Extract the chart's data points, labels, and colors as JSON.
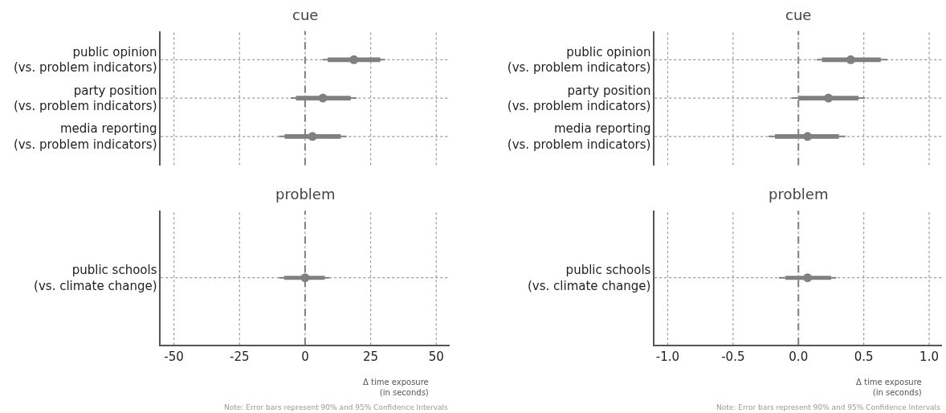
{
  "chart_data": [
    {
      "type": "scatter",
      "orientation": "horizontal",
      "title": "cue",
      "categories": [
        "public opinion\n(vs. problem indicators)",
        "party position\n(vs. problem indicators)",
        "media reporting\n(vs. problem indicators)"
      ],
      "xlim": [
        -55,
        55
      ],
      "grid": true,
      "tick_labels": "y",
      "ref_lines": [
        {
          "axis": "x",
          "value": 0,
          "color": "#808080",
          "line_style": "dashed"
        }
      ],
      "series": [
        {
          "color": "#808080",
          "marker": "circle",
          "values": [
            18.6,
            6.8,
            2.8
          ],
          "errors": [
            [
              6.7,
              30.5
            ],
            [
              -5.5,
              19.6
            ],
            [
              -10,
              15.8
            ]
          ]
        },
        {
          "type": "bar",
          "color": "#808080",
          "base": [
            8.6,
            -3.5,
            -7.8
          ],
          "values": [
            20.1,
            20.9,
            21.4
          ]
        }
      ]
    },
    {
      "type": "scatter",
      "orientation": "horizontal",
      "title": "cue",
      "categories": [
        "public opinion\n(vs. problem indicators)",
        "party position\n(vs. problem indicators)",
        "media reporting\n(vs. problem indicators)"
      ],
      "xlim": [
        -1.1,
        1.1
      ],
      "grid": true,
      "tick_labels": "y",
      "ref_lines": [
        {
          "axis": "x",
          "value": 0,
          "color": "#808080",
          "line_style": "dashed"
        }
      ],
      "series": [
        {
          "color": "#808080",
          "marker": "circle",
          "values": [
            0.4,
            0.23,
            0.07
          ],
          "errors": [
            [
              0.14,
              0.68
            ],
            [
              -0.05,
              0.51
            ],
            [
              -0.23,
              0.36
            ]
          ]
        },
        {
          "type": "bar",
          "color": "#808080",
          "base": [
            0.18,
            0.0,
            -0.18
          ],
          "values": [
            0.45,
            0.46,
            0.49
          ]
        }
      ]
    },
    {
      "type": "scatter",
      "orientation": "horizontal",
      "title": "problem",
      "categories": [
        "public schools\n(vs. climate change)"
      ],
      "xlim": [
        -55,
        55
      ],
      "xticks": [
        -50,
        -25,
        0,
        25,
        50
      ],
      "xlabel": "Δ time exposure\n(in seconds)",
      "grid": true,
      "ref_lines": [
        {
          "axis": "x",
          "value": 0,
          "color": "#808080",
          "line_style": "dashed"
        }
      ],
      "annotations": [
        "Note: Error bars represent 90% and 95% Confidence Intervals"
      ],
      "series": [
        {
          "color": "#808080",
          "marker": "circle",
          "values": [
            0
          ],
          "errors": [
            [
              -10,
              9.3
            ]
          ]
        },
        {
          "type": "bar",
          "color": "#808080",
          "base": [
            -8
          ],
          "values": [
            15.5
          ]
        }
      ]
    },
    {
      "type": "scatter",
      "orientation": "horizontal",
      "title": "problem",
      "categories": [
        "public schools\n(vs. climate change)"
      ],
      "xlim": [
        -1.1,
        1.1
      ],
      "xticks": [
        {
          "value": -1,
          "label": "-1.0"
        },
        {
          "value": -0.5,
          "label": "-0.5"
        },
        {
          "value": 0,
          "label": "0.0"
        },
        {
          "value": 0.5,
          "label": "0.5"
        },
        {
          "value": 1,
          "label": "1.0"
        }
      ],
      "xlabel": "Δ time exposure\n(in seconds)",
      "grid": true,
      "ref_lines": [
        {
          "axis": "x",
          "value": 0,
          "color": "#808080",
          "line_style": "dashed"
        }
      ],
      "annotations": [
        "Note: Error bars represent 90% and 95% Confidence Intervals"
      ],
      "series": [
        {
          "color": "#808080",
          "marker": "circle",
          "values": [
            0.07
          ],
          "errors": [
            [
              -0.15,
              0.29
            ]
          ]
        },
        {
          "type": "bar",
          "color": "#808080",
          "base": [
            -0.1
          ],
          "values": [
            0.35
          ]
        }
      ]
    }
  ]
}
